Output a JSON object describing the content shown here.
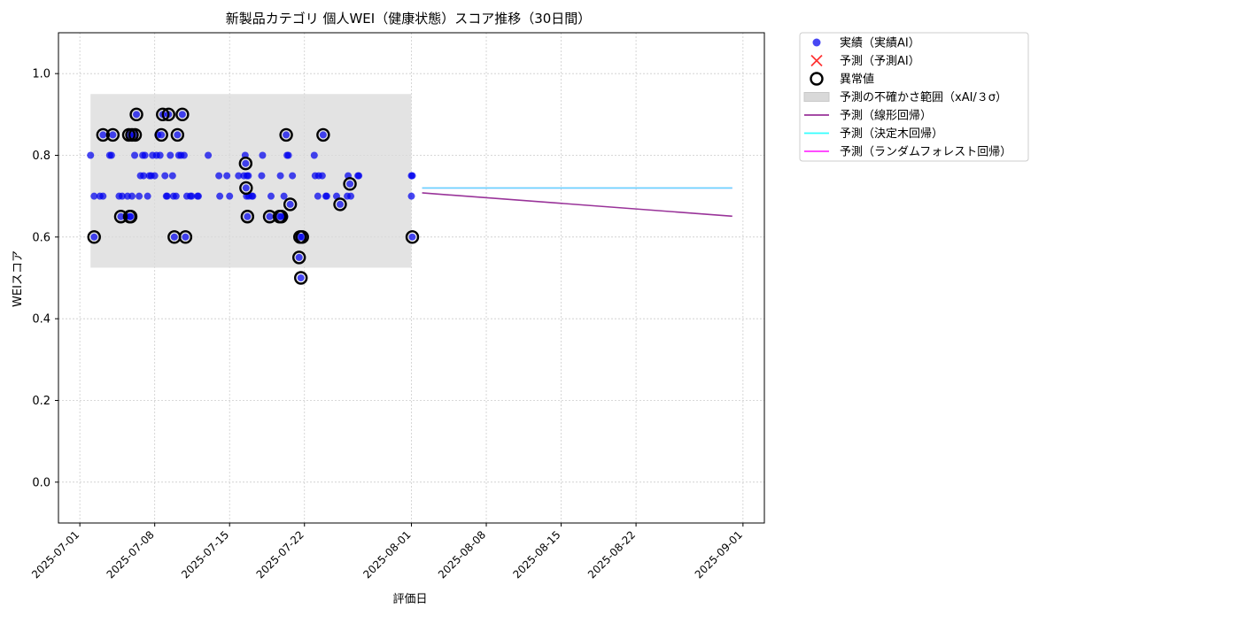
{
  "chart_data": {
    "type": "scatter",
    "title": "新製品カテゴリ 個人WEI（健康状態）スコア推移（30日間）",
    "xlabel": "評価日",
    "ylabel": "WEIスコア",
    "xlim": [
      "2025-06-29T00:00",
      "2025-09-03T00:00"
    ],
    "ylim": [
      -0.1,
      1.1
    ],
    "x_ticks": [
      "2025-07-01",
      "2025-07-08",
      "2025-07-15",
      "2025-07-22",
      "2025-08-01",
      "2025-08-08",
      "2025-08-15",
      "2025-08-22",
      "2025-09-01"
    ],
    "y_ticks": [
      0.0,
      0.2,
      0.4,
      0.6,
      0.8,
      1.0
    ],
    "y_tick_labels": [
      "0.0",
      "0.2",
      "0.4",
      "0.6",
      "0.8",
      "1.0"
    ],
    "grid": true,
    "legend_position": "outside-top-right",
    "legend": [
      {
        "key": "actual",
        "label": "実績（実績AI）",
        "marker": "circle",
        "color": "#0000ee"
      },
      {
        "key": "predicted",
        "label": "予測（予測AI）",
        "marker": "x",
        "color": "#ff3333"
      },
      {
        "key": "anomaly",
        "label": "異常値",
        "marker": "ring",
        "color": "#000000"
      },
      {
        "key": "band",
        "label": "予測の不確かさ範囲（xAI/３σ）",
        "marker": "patch",
        "color": "#d9d9d9"
      },
      {
        "key": "linear",
        "label": "予測（線形回帰）",
        "marker": "line",
        "color": "#993399"
      },
      {
        "key": "tree",
        "label": "予測（決定木回帰）",
        "marker": "line",
        "color": "#33ffff"
      },
      {
        "key": "forest",
        "label": "予測（ランダムフォレスト回帰）",
        "marker": "line",
        "color": "#ff33ff"
      }
    ],
    "uncertainty_band": {
      "x": [
        "2025-07-02T00:00",
        "2025-08-01T00:00"
      ],
      "y": [
        0.525,
        0.95
      ],
      "color": "#d9d9d9"
    },
    "series": [
      {
        "key": "actual",
        "name": "実績（実績AI）",
        "color": "#0000ee",
        "points": [
          [
            "2025-07-02T00:00",
            0.8
          ],
          [
            "2025-07-02T08:00",
            0.7
          ],
          [
            "2025-07-02T08:00",
            0.6
          ],
          [
            "2025-07-02T21:00",
            0.7
          ],
          [
            "2025-07-03T04:00",
            0.85
          ],
          [
            "2025-07-03T04:00",
            0.7
          ],
          [
            "2025-07-03T19:00",
            0.8
          ],
          [
            "2025-07-03T23:00",
            0.8
          ],
          [
            "2025-07-04T02:00",
            0.85
          ],
          [
            "2025-07-04T16:00",
            0.7
          ],
          [
            "2025-07-04T20:00",
            0.65
          ],
          [
            "2025-07-04T23:00",
            0.7
          ],
          [
            "2025-07-05T08:00",
            0.65
          ],
          [
            "2025-07-05T11:00",
            0.7
          ],
          [
            "2025-07-05T14:00",
            0.85
          ],
          [
            "2025-07-05T16:00",
            0.65
          ],
          [
            "2025-07-05T18:00",
            0.65
          ],
          [
            "2025-07-05T21:00",
            0.7
          ],
          [
            "2025-07-05T21:00",
            0.85
          ],
          [
            "2025-07-06T03:00",
            0.8
          ],
          [
            "2025-07-06T04:00",
            0.85
          ],
          [
            "2025-07-06T07:00",
            0.9
          ],
          [
            "2025-07-06T13:00",
            0.7
          ],
          [
            "2025-07-06T16:00",
            0.75
          ],
          [
            "2025-07-06T21:00",
            0.8
          ],
          [
            "2025-07-06T23:00",
            0.75
          ],
          [
            "2025-07-07T02:00",
            0.8
          ],
          [
            "2025-07-07T08:00",
            0.7
          ],
          [
            "2025-07-07T12:00",
            0.75
          ],
          [
            "2025-07-07T16:00",
            0.75
          ],
          [
            "2025-07-07T19:00",
            0.8
          ],
          [
            "2025-07-08T00:00",
            0.75
          ],
          [
            "2025-07-08T04:00",
            0.8
          ],
          [
            "2025-07-08T07:00",
            0.85
          ],
          [
            "2025-07-08T12:00",
            0.8
          ],
          [
            "2025-07-08T15:00",
            0.85
          ],
          [
            "2025-07-08T18:00",
            0.9
          ],
          [
            "2025-07-08T23:00",
            0.75
          ],
          [
            "2025-07-09T02:00",
            0.7
          ],
          [
            "2025-07-09T04:00",
            0.7
          ],
          [
            "2025-07-09T07:00",
            0.9
          ],
          [
            "2025-07-09T11:00",
            0.8
          ],
          [
            "2025-07-09T16:00",
            0.75
          ],
          [
            "2025-07-09T18:00",
            0.7
          ],
          [
            "2025-07-09T20:00",
            0.6
          ],
          [
            "2025-07-10T00:00",
            0.7
          ],
          [
            "2025-07-10T03:00",
            0.85
          ],
          [
            "2025-07-10T06:00",
            0.8
          ],
          [
            "2025-07-10T11:00",
            0.8
          ],
          [
            "2025-07-10T14:00",
            0.9
          ],
          [
            "2025-07-10T18:00",
            0.8
          ],
          [
            "2025-07-10T21:00",
            0.6
          ],
          [
            "2025-07-11T00:00",
            0.7
          ],
          [
            "2025-07-11T08:00",
            0.7
          ],
          [
            "2025-07-11T11:00",
            0.7
          ],
          [
            "2025-07-12T00:00",
            0.7
          ],
          [
            "2025-07-12T02:00",
            0.7
          ],
          [
            "2025-07-13T00:00",
            0.8
          ],
          [
            "2025-07-14T00:00",
            0.75
          ],
          [
            "2025-07-14T02:00",
            0.7
          ],
          [
            "2025-07-14T18:00",
            0.75
          ],
          [
            "2025-07-15T00:00",
            0.7
          ],
          [
            "2025-07-15T20:00",
            0.75
          ],
          [
            "2025-07-16T08:00",
            0.75
          ],
          [
            "2025-07-16T11:00",
            0.8
          ],
          [
            "2025-07-16T12:00",
            0.78
          ],
          [
            "2025-07-16T13:00",
            0.72
          ],
          [
            "2025-07-16T14:00",
            0.7
          ],
          [
            "2025-07-16T15:00",
            0.75
          ],
          [
            "2025-07-16T16:00",
            0.65
          ],
          [
            "2025-07-16T18:00",
            0.75
          ],
          [
            "2025-07-16T19:00",
            0.7
          ],
          [
            "2025-07-17T02:00",
            0.7
          ],
          [
            "2025-07-17T04:00",
            0.7
          ],
          [
            "2025-07-18T00:00",
            0.75
          ],
          [
            "2025-07-18T02:00",
            0.8
          ],
          [
            "2025-07-18T18:00",
            0.65
          ],
          [
            "2025-07-18T21:00",
            0.7
          ],
          [
            "2025-07-19T16:00",
            0.65
          ],
          [
            "2025-07-19T18:00",
            0.75
          ],
          [
            "2025-07-19T20:00",
            0.65
          ],
          [
            "2025-07-20T02:00",
            0.7
          ],
          [
            "2025-07-20T04:00",
            0.65
          ],
          [
            "2025-07-20T07:00",
            0.85
          ],
          [
            "2025-07-20T09:00",
            0.8
          ],
          [
            "2025-07-20T12:00",
            0.8
          ],
          [
            "2025-07-20T16:00",
            0.68
          ],
          [
            "2025-07-20T21:00",
            0.75
          ],
          [
            "2025-07-21T12:00",
            0.55
          ],
          [
            "2025-07-21T14:00",
            0.6
          ],
          [
            "2025-07-21T16:00",
            0.5
          ],
          [
            "2025-07-21T19:00",
            0.6
          ],
          [
            "2025-07-22T22:00",
            0.8
          ],
          [
            "2025-07-23T00:00",
            0.75
          ],
          [
            "2025-07-23T06:00",
            0.7
          ],
          [
            "2025-07-23T08:00",
            0.75
          ],
          [
            "2025-07-23T16:00",
            0.75
          ],
          [
            "2025-07-23T18:00",
            0.85
          ],
          [
            "2025-07-24T00:00",
            0.7
          ],
          [
            "2025-07-24T02:00",
            0.7
          ],
          [
            "2025-07-25T00:00",
            0.7
          ],
          [
            "2025-07-25T08:00",
            0.68
          ],
          [
            "2025-07-26T00:00",
            0.7
          ],
          [
            "2025-07-26T02:00",
            0.75
          ],
          [
            "2025-07-26T06:00",
            0.73
          ],
          [
            "2025-07-26T08:00",
            0.7
          ],
          [
            "2025-07-27T00:00",
            0.75
          ],
          [
            "2025-07-27T02:00",
            0.75
          ],
          [
            "2025-08-01T00:00",
            0.75
          ],
          [
            "2025-08-01T00:00",
            0.7
          ],
          [
            "2025-08-01T02:00",
            0.75
          ],
          [
            "2025-08-01T02:00",
            0.6
          ]
        ]
      },
      {
        "key": "anomaly",
        "name": "異常値",
        "color": "#000000",
        "points": [
          [
            "2025-07-02T08:00",
            0.6
          ],
          [
            "2025-07-03T04:00",
            0.85
          ],
          [
            "2025-07-04T02:00",
            0.85
          ],
          [
            "2025-07-04T20:00",
            0.65
          ],
          [
            "2025-07-05T14:00",
            0.85
          ],
          [
            "2025-07-05T16:00",
            0.65
          ],
          [
            "2025-07-05T18:00",
            0.65
          ],
          [
            "2025-07-05T21:00",
            0.85
          ],
          [
            "2025-07-06T04:00",
            0.85
          ],
          [
            "2025-07-06T07:00",
            0.9
          ],
          [
            "2025-07-08T15:00",
            0.85
          ],
          [
            "2025-07-08T18:00",
            0.9
          ],
          [
            "2025-07-09T07:00",
            0.9
          ],
          [
            "2025-07-09T20:00",
            0.6
          ],
          [
            "2025-07-10T03:00",
            0.85
          ],
          [
            "2025-07-10T14:00",
            0.9
          ],
          [
            "2025-07-10T21:00",
            0.6
          ],
          [
            "2025-07-16T12:00",
            0.78
          ],
          [
            "2025-07-16T13:00",
            0.72
          ],
          [
            "2025-07-16T16:00",
            0.65
          ],
          [
            "2025-07-18T18:00",
            0.65
          ],
          [
            "2025-07-19T16:00",
            0.65
          ],
          [
            "2025-07-19T20:00",
            0.65
          ],
          [
            "2025-07-20T07:00",
            0.85
          ],
          [
            "2025-07-20T16:00",
            0.68
          ],
          [
            "2025-07-21T12:00",
            0.55
          ],
          [
            "2025-07-21T14:00",
            0.6
          ],
          [
            "2025-07-21T16:00",
            0.5
          ],
          [
            "2025-07-21T19:00",
            0.6
          ],
          [
            "2025-07-23T18:00",
            0.85
          ],
          [
            "2025-07-25T08:00",
            0.68
          ],
          [
            "2025-07-26T06:00",
            0.73
          ],
          [
            "2025-08-01T02:00",
            0.6
          ]
        ]
      },
      {
        "key": "linear",
        "name": "予測（線形回帰）",
        "color": "#993399",
        "points": [
          [
            "2025-08-02T00:00",
            0.708
          ],
          [
            "2025-08-31T00:00",
            0.651
          ]
        ]
      },
      {
        "key": "tree",
        "name": "予測（決定木回帰）",
        "color": "#33ffff",
        "points": [
          [
            "2025-08-02T00:00",
            0.72
          ],
          [
            "2025-08-31T00:00",
            0.72
          ]
        ]
      },
      {
        "key": "forest",
        "name": "予測（ランダムフォレスト回帰）",
        "color": "#ff33ff",
        "points": [
          [
            "2025-08-02T00:00",
            0.72
          ],
          [
            "2025-08-31T00:00",
            0.72
          ]
        ]
      }
    ]
  }
}
